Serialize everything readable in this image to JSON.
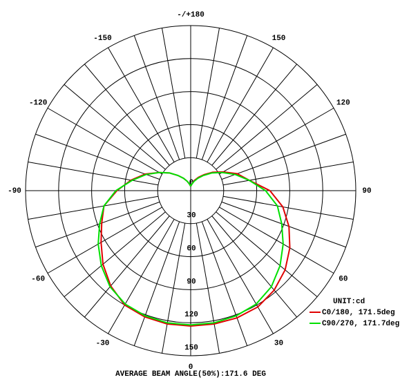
{
  "chart_data": {
    "type": "polar",
    "x": [
      -180,
      -170,
      -160,
      -150,
      -140,
      -130,
      -120,
      -110,
      -100,
      -90,
      -80,
      -70,
      -60,
      -50,
      -40,
      -30,
      -20,
      -10,
      0,
      10,
      20,
      30,
      40,
      50,
      60,
      70,
      80,
      90,
      100,
      110,
      120,
      130,
      140,
      150,
      160,
      170,
      180
    ],
    "series": [
      {
        "name": "C0/180, 171.5deg",
        "color": "#e00000",
        "values": [
          4,
          6,
          9,
          13,
          18,
          25,
          33,
          44,
          55,
          67,
          80,
          86,
          94,
          104,
          113,
          120,
          122,
          123,
          123,
          123,
          123,
          122,
          118,
          112,
          104,
          95,
          85,
          72,
          54,
          45,
          34,
          26,
          19,
          14,
          10,
          6,
          4
        ]
      },
      {
        "name": "C90/270, 171.7deg",
        "color": "#00e000",
        "values": [
          4,
          6,
          9,
          13,
          18,
          25,
          33,
          43,
          54,
          68,
          80,
          88,
          97,
          106,
          114,
          119,
          121,
          122,
          122,
          122,
          121,
          119,
          114,
          106,
          97,
          88,
          80,
          68,
          54,
          43,
          33,
          25,
          18,
          13,
          9,
          6,
          4
        ]
      }
    ],
    "xticks": [
      {
        "value": 180,
        "label": "-/+180"
      },
      150,
      120,
      90,
      60,
      30,
      0,
      -30,
      -60,
      -90,
      -120,
      -150
    ],
    "ylim": [
      0,
      150
    ],
    "yticks": [
      0,
      30,
      60,
      90,
      120,
      150
    ],
    "unit_label": "UNIT:cd",
    "footer": "AVERAGE BEAM ANGLE(50%):171.6 DEG"
  }
}
